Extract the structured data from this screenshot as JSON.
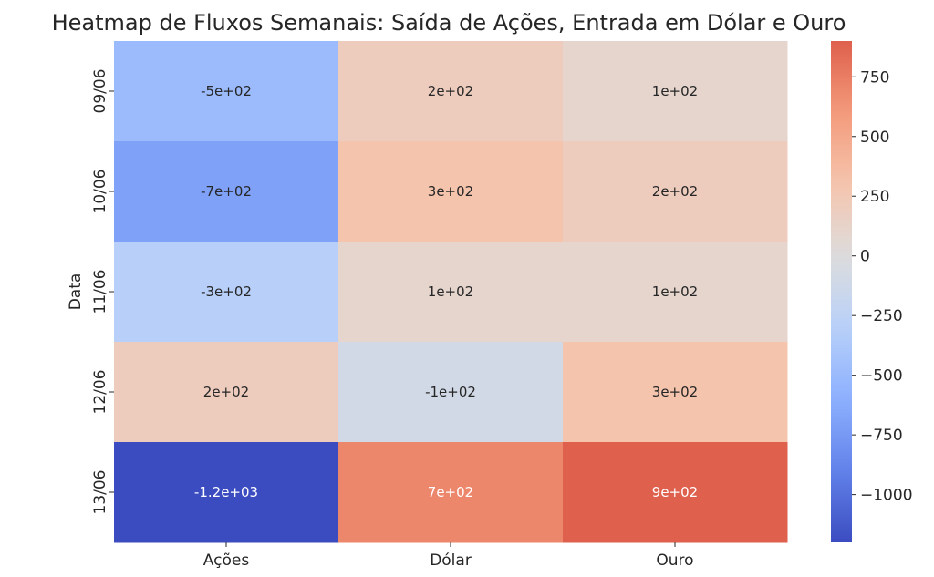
{
  "chart_data": {
    "type": "heatmap",
    "title": "Heatmap de Fluxos Semanais: Saída de Ações, Entrada em Dólar e Ouro",
    "xlabel": "",
    "ylabel": "Data",
    "columns": [
      "Ações",
      "Dólar",
      "Ouro"
    ],
    "rows": [
      "09/06",
      "10/06",
      "11/06",
      "12/06",
      "13/06"
    ],
    "values": [
      [
        -500,
        200,
        100
      ],
      [
        -700,
        300,
        200
      ],
      [
        -300,
        100,
        100
      ],
      [
        200,
        -100,
        300
      ],
      [
        -1200,
        700,
        900
      ]
    ],
    "cell_labels": [
      [
        "-5e+02",
        "2e+02",
        "1e+02"
      ],
      [
        "-7e+02",
        "3e+02",
        "2e+02"
      ],
      [
        "-3e+02",
        "1e+02",
        "1e+02"
      ],
      [
        "2e+02",
        "-1e+02",
        "3e+02"
      ],
      [
        "-1.2e+03",
        "7e+02",
        "9e+02"
      ]
    ],
    "colormap": "coolwarm",
    "vmin": -1200,
    "vmax": 900,
    "center": 0,
    "colorbar_ticks": [
      750,
      500,
      250,
      0,
      -250,
      -500,
      -750,
      -1000
    ],
    "colorbar_tick_labels": [
      "750",
      "500",
      "250",
      "0",
      "−250",
      "−500",
      "−750",
      "−1000"
    ]
  }
}
